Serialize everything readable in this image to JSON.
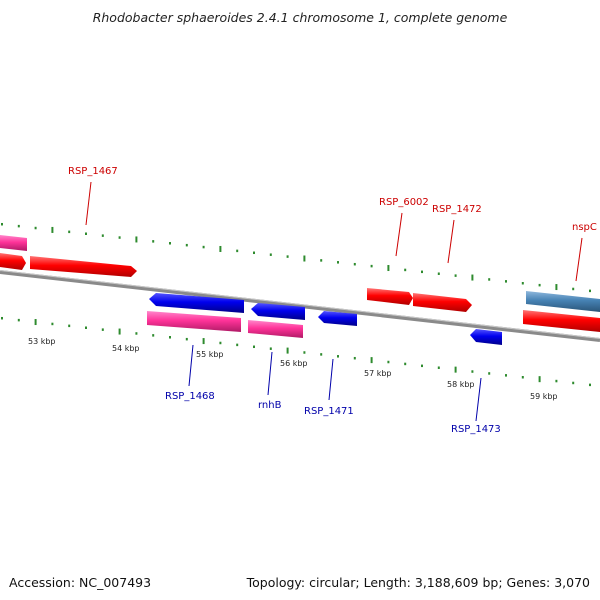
{
  "title": "Rhodobacter sphaeroides 2.4.1 chromosome 1, complete genome",
  "footer": {
    "accession": "Accession: NC_007493",
    "summary": "Topology: circular; Length: 3,188,609 bp; Genes: 3,070"
  },
  "colors": {
    "backbone": "#8a8a8a",
    "tick": "#2e8b2e",
    "forward_gene": "#ff0000",
    "forward_gene_pink": "#ff3399",
    "reverse_gene": "#0000ee",
    "steelblue_gene": "#4682b4",
    "label_forward": "#cc0000",
    "label_reverse": "#0000aa"
  },
  "kbp_labels": [
    "53 kbp",
    "54 kbp",
    "55 kbp",
    "56 kbp",
    "57 kbp",
    "58 kbp",
    "59 kbp"
  ],
  "gene_labels": {
    "forward": [
      "RSP_1467",
      "RSP_6002",
      "RSP_1472",
      "nspC"
    ],
    "reverse": [
      "RSP_1468",
      "rnhB",
      "RSP_1471",
      "RSP_1473"
    ]
  }
}
